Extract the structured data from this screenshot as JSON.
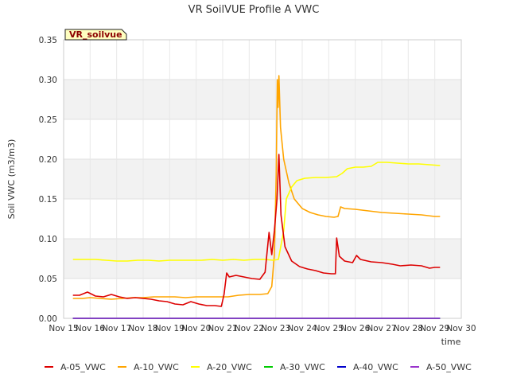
{
  "chart_data": {
    "type": "line",
    "title": "VR SoilVUE Profile A VWC",
    "xlabel": "time",
    "ylabel": "Soil VWC (m3/m3)",
    "ylim": [
      0,
      0.35
    ],
    "xlim": [
      15,
      30
    ],
    "y_ticks": [
      {
        "value": 0.0,
        "label": "0.00"
      },
      {
        "value": 0.05,
        "label": "0.05"
      },
      {
        "value": 0.1,
        "label": "0.10"
      },
      {
        "value": 0.15,
        "label": "0.15"
      },
      {
        "value": 0.2,
        "label": "0.20"
      },
      {
        "value": 0.25,
        "label": "0.25"
      },
      {
        "value": 0.3,
        "label": "0.30"
      },
      {
        "value": 0.35,
        "label": "0.35"
      }
    ],
    "x_ticks": [
      {
        "value": 15,
        "label": "Nov 15"
      },
      {
        "value": 16,
        "label": "Nov 16"
      },
      {
        "value": 17,
        "label": "Nov 17"
      },
      {
        "value": 18,
        "label": "Nov 18"
      },
      {
        "value": 19,
        "label": "Nov 19"
      },
      {
        "value": 20,
        "label": "Nov 20"
      },
      {
        "value": 21,
        "label": "Nov 21"
      },
      {
        "value": 22,
        "label": "Nov 22"
      },
      {
        "value": 23,
        "label": "Nov 23"
      },
      {
        "value": 24,
        "label": "Nov 24"
      },
      {
        "value": 25,
        "label": "Nov 25"
      },
      {
        "value": 26,
        "label": "Nov 26"
      },
      {
        "value": 27,
        "label": "Nov 27"
      },
      {
        "value": 28,
        "label": "Nov 28"
      },
      {
        "value": 29,
        "label": "Nov 29"
      },
      {
        "value": 30,
        "label": "Nov 30"
      }
    ],
    "station_tag": "VR_soilvue",
    "grid": true,
    "legend_position": "bottom",
    "series": [
      {
        "name": "A-05_VWC",
        "color": "#dd0000",
        "points": [
          [
            15.35,
            0.029
          ],
          [
            15.6,
            0.029
          ],
          [
            15.9,
            0.033
          ],
          [
            16.2,
            0.028
          ],
          [
            16.5,
            0.027
          ],
          [
            16.8,
            0.03
          ],
          [
            17.1,
            0.027
          ],
          [
            17.4,
            0.025
          ],
          [
            17.7,
            0.026
          ],
          [
            18.0,
            0.025
          ],
          [
            18.3,
            0.024
          ],
          [
            18.6,
            0.022
          ],
          [
            18.9,
            0.021
          ],
          [
            19.2,
            0.018
          ],
          [
            19.5,
            0.017
          ],
          [
            19.8,
            0.021
          ],
          [
            20.1,
            0.018
          ],
          [
            20.4,
            0.016
          ],
          [
            20.7,
            0.016
          ],
          [
            20.95,
            0.015
          ],
          [
            21.05,
            0.03
          ],
          [
            21.15,
            0.057
          ],
          [
            21.25,
            0.052
          ],
          [
            21.5,
            0.054
          ],
          [
            21.8,
            0.052
          ],
          [
            22.1,
            0.05
          ],
          [
            22.4,
            0.049
          ],
          [
            22.6,
            0.058
          ],
          [
            22.75,
            0.108
          ],
          [
            22.85,
            0.08
          ],
          [
            22.95,
            0.11
          ],
          [
            23.05,
            0.15
          ],
          [
            23.12,
            0.206
          ],
          [
            23.2,
            0.13
          ],
          [
            23.35,
            0.09
          ],
          [
            23.6,
            0.072
          ],
          [
            23.9,
            0.065
          ],
          [
            24.2,
            0.062
          ],
          [
            24.5,
            0.06
          ],
          [
            24.8,
            0.057
          ],
          [
            25.1,
            0.056
          ],
          [
            25.25,
            0.056
          ],
          [
            25.3,
            0.101
          ],
          [
            25.4,
            0.078
          ],
          [
            25.6,
            0.072
          ],
          [
            25.9,
            0.07
          ],
          [
            26.05,
            0.079
          ],
          [
            26.2,
            0.074
          ],
          [
            26.6,
            0.071
          ],
          [
            27.0,
            0.07
          ],
          [
            27.4,
            0.068
          ],
          [
            27.7,
            0.066
          ],
          [
            28.1,
            0.067
          ],
          [
            28.5,
            0.066
          ],
          [
            28.8,
            0.063
          ],
          [
            29.0,
            0.064
          ],
          [
            29.2,
            0.064
          ]
        ]
      },
      {
        "name": "A-10_VWC",
        "color": "#ffa500",
        "points": [
          [
            15.35,
            0.025
          ],
          [
            15.7,
            0.025
          ],
          [
            16.0,
            0.026
          ],
          [
            16.4,
            0.025
          ],
          [
            16.8,
            0.024
          ],
          [
            17.2,
            0.025
          ],
          [
            17.6,
            0.026
          ],
          [
            18.0,
            0.026
          ],
          [
            18.4,
            0.027
          ],
          [
            18.8,
            0.027
          ],
          [
            19.2,
            0.027
          ],
          [
            19.6,
            0.026
          ],
          [
            20.0,
            0.027
          ],
          [
            20.4,
            0.027
          ],
          [
            20.8,
            0.027
          ],
          [
            21.2,
            0.027
          ],
          [
            21.6,
            0.029
          ],
          [
            22.0,
            0.03
          ],
          [
            22.4,
            0.03
          ],
          [
            22.7,
            0.031
          ],
          [
            22.85,
            0.04
          ],
          [
            22.95,
            0.08
          ],
          [
            23.02,
            0.18
          ],
          [
            23.06,
            0.3
          ],
          [
            23.09,
            0.265
          ],
          [
            23.12,
            0.305
          ],
          [
            23.18,
            0.24
          ],
          [
            23.3,
            0.2
          ],
          [
            23.5,
            0.17
          ],
          [
            23.7,
            0.15
          ],
          [
            24.0,
            0.138
          ],
          [
            24.3,
            0.133
          ],
          [
            24.6,
            0.13
          ],
          [
            24.9,
            0.128
          ],
          [
            25.2,
            0.127
          ],
          [
            25.35,
            0.128
          ],
          [
            25.45,
            0.14
          ],
          [
            25.6,
            0.138
          ],
          [
            26.0,
            0.137
          ],
          [
            26.5,
            0.135
          ],
          [
            27.0,
            0.133
          ],
          [
            27.5,
            0.132
          ],
          [
            28.0,
            0.131
          ],
          [
            28.5,
            0.13
          ],
          [
            29.0,
            0.128
          ],
          [
            29.2,
            0.128
          ]
        ]
      },
      {
        "name": "A-20_VWC",
        "color": "#ffff00",
        "points": [
          [
            15.35,
            0.074
          ],
          [
            15.8,
            0.074
          ],
          [
            16.2,
            0.074
          ],
          [
            16.6,
            0.073
          ],
          [
            17.0,
            0.072
          ],
          [
            17.4,
            0.072
          ],
          [
            17.8,
            0.073
          ],
          [
            18.2,
            0.073
          ],
          [
            18.6,
            0.072
          ],
          [
            19.0,
            0.073
          ],
          [
            19.4,
            0.073
          ],
          [
            19.8,
            0.073
          ],
          [
            20.2,
            0.073
          ],
          [
            20.6,
            0.074
          ],
          [
            21.0,
            0.073
          ],
          [
            21.4,
            0.074
          ],
          [
            21.8,
            0.073
          ],
          [
            22.2,
            0.074
          ],
          [
            22.6,
            0.074
          ],
          [
            22.9,
            0.073
          ],
          [
            23.1,
            0.074
          ],
          [
            23.3,
            0.11
          ],
          [
            23.4,
            0.15
          ],
          [
            23.6,
            0.165
          ],
          [
            23.8,
            0.173
          ],
          [
            24.1,
            0.176
          ],
          [
            24.5,
            0.177
          ],
          [
            24.9,
            0.177
          ],
          [
            25.3,
            0.178
          ],
          [
            25.5,
            0.182
          ],
          [
            25.7,
            0.188
          ],
          [
            26.0,
            0.19
          ],
          [
            26.3,
            0.19
          ],
          [
            26.6,
            0.191
          ],
          [
            26.85,
            0.196
          ],
          [
            27.2,
            0.196
          ],
          [
            27.6,
            0.195
          ],
          [
            28.0,
            0.194
          ],
          [
            28.4,
            0.194
          ],
          [
            28.8,
            0.193
          ],
          [
            29.2,
            0.192
          ]
        ]
      },
      {
        "name": "A-30_VWC",
        "color": "#00cc00",
        "points": [
          [
            15.35,
            0.0
          ],
          [
            29.2,
            0.0
          ]
        ]
      },
      {
        "name": "A-40_VWC",
        "color": "#0000cc",
        "points": [
          [
            15.35,
            0.0
          ],
          [
            29.2,
            0.0
          ]
        ]
      },
      {
        "name": "A-50_VWC",
        "color": "#9933cc",
        "points": [
          [
            15.35,
            0.0
          ],
          [
            29.2,
            0.0
          ]
        ]
      }
    ]
  }
}
